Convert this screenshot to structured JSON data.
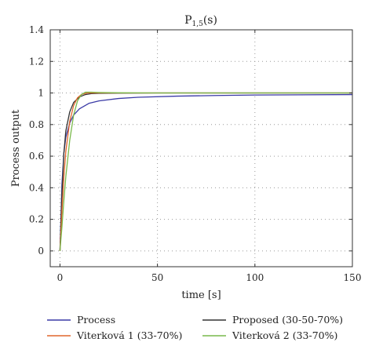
{
  "chart_data": {
    "type": "line",
    "title": {
      "main": "P",
      "sub": "1,5",
      "suffix": "(s)"
    },
    "xlabel": "time [s]",
    "ylabel": "Process output",
    "xlim": [
      -5,
      150
    ],
    "ylim": [
      -0.1,
      1.4
    ],
    "xticks": [
      0,
      50,
      100,
      150
    ],
    "yticks": [
      0,
      0.2,
      0.4,
      0.6,
      0.8,
      1,
      1.2,
      1.4
    ],
    "ytick_labels": [
      "0",
      "0.2",
      "0.4",
      "0.6",
      "0.8",
      "1",
      "1.2",
      "1.4"
    ],
    "grid": true,
    "legend_position": "bottom",
    "series": [
      {
        "name": "Process",
        "color": "#3a3aa6",
        "x": [
          0,
          1,
          2,
          3,
          5,
          7,
          10,
          15,
          20,
          30,
          40,
          60,
          80,
          100,
          150
        ],
        "y": [
          0,
          0.42,
          0.62,
          0.72,
          0.81,
          0.86,
          0.9,
          0.935,
          0.95,
          0.965,
          0.973,
          0.98,
          0.984,
          0.987,
          0.99
        ]
      },
      {
        "name": "Proposed (30-50-70%)",
        "color": "#333333",
        "x": [
          0,
          1,
          2,
          3,
          5,
          7,
          10,
          13,
          16,
          20,
          30,
          50,
          100,
          150
        ],
        "y": [
          0,
          0.35,
          0.62,
          0.76,
          0.88,
          0.94,
          0.975,
          0.99,
          0.996,
          0.998,
          0.999,
          1,
          1,
          1
        ]
      },
      {
        "name": "Viterková 1 (33-70%)",
        "color": "#e0662b",
        "x": [
          0,
          1,
          2,
          3,
          5,
          7,
          9,
          11,
          14,
          18,
          25,
          50,
          100,
          150
        ],
        "y": [
          0,
          0.25,
          0.47,
          0.63,
          0.82,
          0.92,
          0.97,
          0.99,
          1.0,
          1.0,
          1.0,
          1.0,
          1.0,
          1.0
        ]
      },
      {
        "name": "Viterková 2 (33-70%)",
        "color": "#79b94b",
        "x": [
          0,
          1,
          2,
          3,
          5,
          7,
          9,
          11,
          13,
          16,
          20,
          30,
          50,
          100,
          150
        ],
        "y": [
          0,
          0.15,
          0.32,
          0.47,
          0.7,
          0.86,
          0.95,
          0.99,
          1.005,
          1.005,
          1.003,
          1.001,
          1.0,
          1.0,
          1.0
        ]
      }
    ],
    "legend_order": [
      0,
      2,
      1,
      3
    ]
  }
}
